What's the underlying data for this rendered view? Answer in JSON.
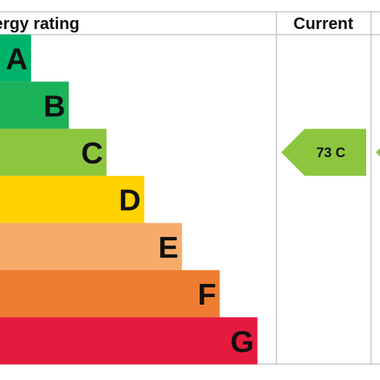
{
  "header": {
    "title": "ergy rating",
    "current_label": "Current"
  },
  "chart_data": {
    "type": "bar",
    "title": "",
    "categories": [
      "A",
      "B",
      "C",
      "D",
      "E",
      "F",
      "G"
    ],
    "bands": [
      {
        "letter": "A",
        "rank": 1,
        "color": "#00b36b"
      },
      {
        "letter": "B",
        "rank": 2,
        "color": "#1bb25a"
      },
      {
        "letter": "C",
        "rank": 3,
        "color": "#8cc63f"
      },
      {
        "letter": "D",
        "rank": 4,
        "color": "#ffd200"
      },
      {
        "letter": "E",
        "rank": 5,
        "color": "#f7ab6b"
      },
      {
        "letter": "F",
        "rank": 6,
        "color": "#ee7d31"
      },
      {
        "letter": "G",
        "rank": 7,
        "color": "#e51a3f"
      }
    ],
    "current": {
      "value": 73,
      "band": "C",
      "label": "73 C",
      "color": "#8cc63f"
    },
    "potential": {
      "band": "C",
      "color": "#8cc63f"
    }
  }
}
